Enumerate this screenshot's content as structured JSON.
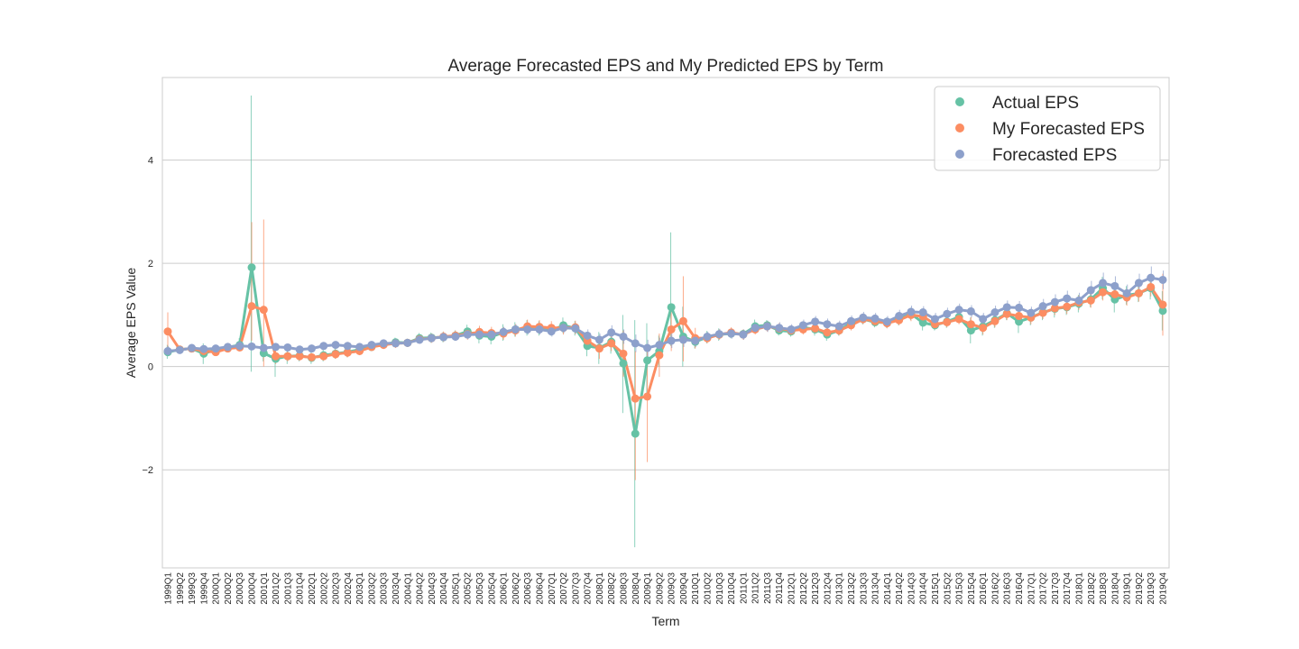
{
  "chart_data": {
    "type": "line",
    "title": "Average Forecasted EPS and My Predicted EPS by Term",
    "xlabel": "Term",
    "ylabel": "Average EPS Value",
    "ylim": [
      -3.9,
      5.6
    ],
    "yticks": [
      -2,
      0,
      2,
      4
    ],
    "ytick_labels": [
      "−2",
      "0",
      "2",
      "4"
    ],
    "grid": "horizontal",
    "legend_position": "top-right",
    "categories": [
      "1999Q1",
      "1999Q2",
      "1999Q3",
      "1999Q4",
      "2000Q1",
      "2000Q2",
      "2000Q3",
      "2000Q4",
      "2001Q1",
      "2001Q2",
      "2001Q3",
      "2001Q4",
      "2002Q1",
      "2002Q2",
      "2002Q3",
      "2002Q4",
      "2003Q1",
      "2003Q2",
      "2003Q3",
      "2003Q4",
      "2004Q1",
      "2004Q2",
      "2004Q3",
      "2004Q4",
      "2005Q1",
      "2005Q2",
      "2005Q3",
      "2005Q4",
      "2006Q1",
      "2006Q2",
      "2006Q3",
      "2006Q4",
      "2007Q1",
      "2007Q2",
      "2007Q3",
      "2007Q4",
      "2008Q1",
      "2008Q2",
      "2008Q3",
      "2008Q4",
      "2009Q1",
      "2009Q2",
      "2009Q3",
      "2009Q4",
      "2010Q1",
      "2010Q2",
      "2010Q3",
      "2010Q4",
      "2011Q1",
      "2011Q2",
      "2011Q3",
      "2011Q4",
      "2012Q1",
      "2012Q2",
      "2012Q3",
      "2012Q4",
      "2013Q1",
      "2013Q2",
      "2013Q3",
      "2013Q4",
      "2014Q1",
      "2014Q2",
      "2014Q3",
      "2014Q4",
      "2015Q1",
      "2015Q2",
      "2015Q3",
      "2015Q4",
      "2016Q1",
      "2016Q2",
      "2016Q3",
      "2016Q4",
      "2017Q1",
      "2017Q2",
      "2017Q3",
      "2017Q4",
      "2018Q1",
      "2018Q2",
      "2018Q3",
      "2018Q4",
      "2019Q1",
      "2019Q2",
      "2019Q3",
      "2019Q4"
    ],
    "series": [
      {
        "name": "Actual EPS",
        "color": "#66c2a5",
        "values": [
          0.28,
          0.33,
          0.35,
          0.25,
          0.33,
          0.37,
          0.42,
          1.92,
          0.26,
          0.15,
          0.2,
          0.21,
          0.17,
          0.22,
          0.25,
          0.28,
          0.33,
          0.38,
          0.43,
          0.47,
          0.46,
          0.55,
          0.56,
          0.57,
          0.6,
          0.68,
          0.6,
          0.58,
          0.66,
          0.72,
          0.75,
          0.74,
          0.7,
          0.8,
          0.74,
          0.4,
          0.36,
          0.48,
          0.06,
          -1.3,
          0.12,
          0.3,
          1.15,
          0.58,
          0.48,
          0.57,
          0.62,
          0.64,
          0.63,
          0.78,
          0.8,
          0.7,
          0.68,
          0.76,
          0.72,
          0.62,
          0.7,
          0.84,
          0.92,
          0.86,
          0.85,
          0.92,
          1.02,
          0.85,
          0.8,
          0.87,
          0.96,
          0.7,
          0.78,
          0.9,
          1.03,
          0.87,
          0.95,
          1.05,
          1.12,
          1.15,
          1.22,
          1.3,
          1.52,
          1.3,
          1.38,
          1.42,
          1.52,
          1.08
        ],
        "error_low": [
          0.15,
          0.28,
          0.3,
          0.05,
          0.28,
          0.32,
          0.3,
          -0.1,
          0.1,
          -0.2,
          0.05,
          0.1,
          0.05,
          0.1,
          0.15,
          0.18,
          0.25,
          0.3,
          0.35,
          0.38,
          0.38,
          0.45,
          0.46,
          0.47,
          0.5,
          0.55,
          0.45,
          0.43,
          0.5,
          0.58,
          0.6,
          0.6,
          0.6,
          0.65,
          0.6,
          0.2,
          0.05,
          0.25,
          -0.9,
          -3.5,
          -0.6,
          0.0,
          0.4,
          0.0,
          0.35,
          0.45,
          0.5,
          0.55,
          0.55,
          0.65,
          0.7,
          0.6,
          0.58,
          0.65,
          0.6,
          0.5,
          0.6,
          0.75,
          0.82,
          0.76,
          0.75,
          0.8,
          0.9,
          0.7,
          0.7,
          0.75,
          0.85,
          0.45,
          0.6,
          0.75,
          0.9,
          0.65,
          0.8,
          0.9,
          0.95,
          1.0,
          1.05,
          1.15,
          1.3,
          1.05,
          1.2,
          1.25,
          1.3,
          0.7
        ],
        "error_high": [
          0.42,
          0.38,
          0.4,
          0.45,
          0.38,
          0.42,
          0.55,
          5.25,
          0.42,
          0.45,
          0.35,
          0.32,
          0.29,
          0.34,
          0.35,
          0.38,
          0.41,
          0.46,
          0.51,
          0.56,
          0.54,
          0.65,
          0.66,
          0.67,
          0.7,
          0.81,
          0.75,
          0.73,
          0.82,
          0.86,
          0.9,
          0.88,
          0.8,
          0.95,
          0.88,
          0.6,
          0.67,
          0.71,
          1.0,
          0.9,
          0.84,
          0.6,
          2.6,
          1.16,
          0.61,
          0.69,
          0.74,
          0.73,
          0.71,
          0.91,
          0.9,
          0.8,
          0.78,
          0.87,
          0.84,
          0.74,
          0.8,
          0.93,
          1.02,
          0.96,
          0.95,
          1.04,
          1.14,
          1.0,
          0.9,
          0.99,
          1.07,
          0.95,
          0.96,
          1.05,
          1.16,
          1.09,
          1.1,
          1.2,
          1.29,
          1.3,
          1.39,
          1.45,
          1.74,
          1.55,
          1.56,
          1.59,
          1.74,
          1.46
        ]
      },
      {
        "name": "My Forecasted EPS",
        "color": "#fc8d62",
        "values": [
          0.68,
          0.33,
          0.35,
          0.3,
          0.28,
          0.35,
          0.37,
          1.17,
          1.1,
          0.2,
          0.2,
          0.2,
          0.18,
          0.2,
          0.24,
          0.27,
          0.3,
          0.38,
          0.42,
          0.45,
          0.46,
          0.53,
          0.55,
          0.58,
          0.6,
          0.63,
          0.67,
          0.65,
          0.64,
          0.7,
          0.78,
          0.77,
          0.75,
          0.75,
          0.76,
          0.5,
          0.35,
          0.45,
          0.25,
          -0.62,
          -0.58,
          0.22,
          0.72,
          0.88,
          0.55,
          0.55,
          0.62,
          0.66,
          0.62,
          0.72,
          0.78,
          0.74,
          0.7,
          0.72,
          0.74,
          0.66,
          0.7,
          0.8,
          0.92,
          0.88,
          0.84,
          0.9,
          1.0,
          0.97,
          0.82,
          0.86,
          0.92,
          0.82,
          0.75,
          0.88,
          1.02,
          0.98,
          0.95,
          1.04,
          1.13,
          1.16,
          1.24,
          1.28,
          1.44,
          1.4,
          1.34,
          1.42,
          1.54,
          1.2
        ],
        "error_low": [
          0.35,
          0.28,
          0.3,
          0.25,
          0.23,
          0.3,
          0.32,
          0.5,
          0.0,
          0.05,
          0.1,
          0.12,
          0.1,
          0.12,
          0.15,
          0.18,
          0.22,
          0.3,
          0.34,
          0.36,
          0.38,
          0.44,
          0.46,
          0.48,
          0.5,
          0.52,
          0.55,
          0.53,
          0.52,
          0.58,
          0.65,
          0.64,
          0.62,
          0.62,
          0.63,
          0.35,
          0.15,
          0.3,
          -0.2,
          -2.2,
          -1.85,
          -0.2,
          0.3,
          0.1,
          0.35,
          0.45,
          0.52,
          0.56,
          0.52,
          0.62,
          0.68,
          0.64,
          0.6,
          0.62,
          0.64,
          0.56,
          0.6,
          0.7,
          0.82,
          0.78,
          0.74,
          0.8,
          0.88,
          0.85,
          0.72,
          0.76,
          0.82,
          0.68,
          0.62,
          0.76,
          0.9,
          0.84,
          0.82,
          0.92,
          1.0,
          1.02,
          1.1,
          1.14,
          1.28,
          1.25,
          1.18,
          1.26,
          1.36,
          0.6
        ],
        "error_high": [
          1.05,
          0.38,
          0.4,
          0.35,
          0.33,
          0.4,
          0.42,
          2.8,
          2.85,
          0.35,
          0.3,
          0.28,
          0.26,
          0.28,
          0.33,
          0.36,
          0.38,
          0.46,
          0.5,
          0.54,
          0.54,
          0.62,
          0.64,
          0.68,
          0.7,
          0.74,
          0.79,
          0.77,
          0.76,
          0.82,
          0.91,
          0.9,
          0.88,
          0.88,
          0.89,
          0.65,
          0.55,
          0.6,
          0.7,
          0.3,
          0.3,
          0.64,
          1.14,
          1.75,
          0.75,
          0.65,
          0.72,
          0.76,
          0.72,
          0.82,
          0.88,
          0.84,
          0.8,
          0.82,
          0.84,
          0.76,
          0.8,
          0.9,
          1.02,
          0.98,
          0.94,
          1.0,
          1.12,
          1.09,
          0.92,
          0.96,
          1.02,
          0.96,
          0.88,
          1.0,
          1.14,
          1.12,
          1.08,
          1.16,
          1.26,
          1.3,
          1.38,
          1.42,
          1.6,
          1.55,
          1.5,
          1.58,
          1.72,
          1.8
        ]
      },
      {
        "name": "Forecasted EPS",
        "color": "#8da0cb",
        "values": [
          0.3,
          0.32,
          0.36,
          0.34,
          0.35,
          0.38,
          0.4,
          0.39,
          0.36,
          0.38,
          0.37,
          0.33,
          0.35,
          0.4,
          0.42,
          0.4,
          0.38,
          0.42,
          0.45,
          0.45,
          0.46,
          0.52,
          0.55,
          0.57,
          0.58,
          0.62,
          0.62,
          0.62,
          0.67,
          0.72,
          0.72,
          0.72,
          0.68,
          0.75,
          0.74,
          0.6,
          0.52,
          0.66,
          0.58,
          0.45,
          0.36,
          0.42,
          0.5,
          0.52,
          0.5,
          0.58,
          0.63,
          0.64,
          0.62,
          0.75,
          0.78,
          0.75,
          0.72,
          0.8,
          0.87,
          0.82,
          0.78,
          0.88,
          0.95,
          0.93,
          0.87,
          0.98,
          1.06,
          1.05,
          0.92,
          1.02,
          1.1,
          1.07,
          0.92,
          1.05,
          1.15,
          1.14,
          1.04,
          1.17,
          1.25,
          1.32,
          1.28,
          1.48,
          1.62,
          1.56,
          1.42,
          1.62,
          1.72,
          1.68
        ],
        "error_low": [
          0.2,
          0.25,
          0.3,
          0.28,
          0.3,
          0.32,
          0.34,
          0.33,
          0.3,
          0.32,
          0.31,
          0.27,
          0.29,
          0.33,
          0.35,
          0.33,
          0.32,
          0.35,
          0.38,
          0.38,
          0.39,
          0.44,
          0.47,
          0.49,
          0.5,
          0.53,
          0.53,
          0.53,
          0.57,
          0.62,
          0.62,
          0.62,
          0.58,
          0.65,
          0.64,
          0.48,
          0.4,
          0.52,
          0.44,
          0.28,
          0.2,
          0.28,
          0.36,
          0.38,
          0.38,
          0.48,
          0.53,
          0.54,
          0.52,
          0.64,
          0.67,
          0.64,
          0.62,
          0.69,
          0.76,
          0.71,
          0.67,
          0.77,
          0.84,
          0.82,
          0.76,
          0.86,
          0.94,
          0.93,
          0.8,
          0.9,
          0.98,
          0.95,
          0.8,
          0.92,
          1.02,
          1.01,
          0.92,
          1.03,
          1.1,
          1.17,
          1.13,
          1.3,
          1.42,
          1.37,
          1.25,
          1.44,
          1.5,
          1.5
        ],
        "error_high": [
          0.4,
          0.39,
          0.42,
          0.4,
          0.4,
          0.44,
          0.46,
          0.45,
          0.42,
          0.44,
          0.43,
          0.39,
          0.41,
          0.47,
          0.49,
          0.47,
          0.44,
          0.49,
          0.52,
          0.52,
          0.53,
          0.6,
          0.63,
          0.65,
          0.66,
          0.71,
          0.71,
          0.71,
          0.77,
          0.82,
          0.82,
          0.82,
          0.78,
          0.85,
          0.84,
          0.72,
          0.64,
          0.8,
          0.72,
          0.62,
          0.52,
          0.56,
          0.64,
          0.66,
          0.62,
          0.68,
          0.73,
          0.74,
          0.72,
          0.86,
          0.89,
          0.86,
          0.82,
          0.91,
          0.98,
          0.93,
          0.89,
          0.99,
          1.06,
          1.04,
          0.98,
          1.1,
          1.18,
          1.17,
          1.04,
          1.14,
          1.22,
          1.19,
          1.04,
          1.18,
          1.28,
          1.27,
          1.16,
          1.31,
          1.4,
          1.47,
          1.43,
          1.66,
          1.82,
          1.75,
          1.59,
          1.8,
          1.94,
          1.86
        ]
      }
    ]
  }
}
